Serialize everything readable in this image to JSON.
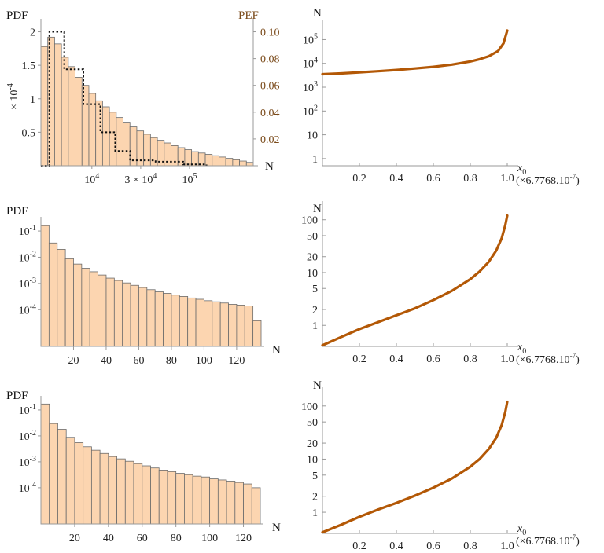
{
  "chart_data": [
    {
      "type": "bar",
      "title": "",
      "ylabel": "PDF",
      "ylabel2": "PEF",
      "xlabel": "N",
      "yscale_label": "× 10",
      "yscale_exp": "-4",
      "ylim": [
        0,
        2.1
      ],
      "y2lim": [
        0,
        0.105
      ],
      "yticks": [
        {
          "v": 0.5,
          "t": "0.5"
        },
        {
          "v": 1,
          "t": "1"
        },
        {
          "v": 1.5,
          "t": "1.5"
        },
        {
          "v": 2,
          "t": "2"
        }
      ],
      "y2ticks": [
        {
          "v": 0.02,
          "t": "0.02"
        },
        {
          "v": 0.04,
          "t": "0.04"
        },
        {
          "v": 0.06,
          "t": "0.06"
        },
        {
          "v": 0.08,
          "t": "0.08"
        },
        {
          "v": 0.1,
          "t": "0.10"
        }
      ],
      "xticks": [
        {
          "pos": 0.24,
          "base": "10",
          "exp": "4"
        },
        {
          "pos": 0.47,
          "base": "3 × 10",
          "exp": "4"
        },
        {
          "pos": 0.7,
          "base": "10",
          "exp": "5"
        }
      ],
      "values": [
        1.78,
        1.92,
        1.82,
        1.62,
        1.48,
        1.32,
        1.2,
        1.08,
        0.97,
        0.88,
        0.8,
        0.72,
        0.65,
        0.58,
        0.52,
        0.47,
        0.42,
        0.38,
        0.34,
        0.3,
        0.27,
        0.24,
        0.21,
        0.19,
        0.17,
        0.15,
        0.13,
        0.11,
        0.09,
        0.07,
        0.05
      ],
      "pef_values": [
        0.0,
        0.1,
        0.072,
        0.046,
        0.025,
        0.011,
        0.004,
        0.003,
        0.001,
        0.001
      ],
      "pef_edges": [
        0.0,
        0.04,
        0.11,
        0.2,
        0.28,
        0.35,
        0.42,
        0.54,
        0.67,
        0.78,
        0.78
      ]
    },
    {
      "type": "line",
      "ylabel": "N",
      "xlabel": "x",
      "xlabel_sub": "0",
      "xscale_label": "(×6.7768.10",
      "xscale_exp": "-7",
      "xscale_close": ")",
      "yscale": "log",
      "ylim": [
        0.5,
        300000
      ],
      "yticks": [
        {
          "v": 1,
          "base": "1",
          "exp": ""
        },
        {
          "v": 10,
          "base": "10",
          "exp": ""
        },
        {
          "v": 100,
          "base": "10",
          "exp": "2"
        },
        {
          "v": 1000,
          "base": "10",
          "exp": "3"
        },
        {
          "v": 10000,
          "base": "10",
          "exp": "4"
        },
        {
          "v": 100000,
          "base": "10",
          "exp": "5"
        }
      ],
      "xticks": [
        "0.2",
        "0.4",
        "0.6",
        "0.8",
        "1.0"
      ],
      "x": [
        0,
        0.1,
        0.2,
        0.3,
        0.4,
        0.5,
        0.6,
        0.7,
        0.8,
        0.85,
        0.9,
        0.95,
        0.98,
        1.0
      ],
      "y": [
        3500,
        3800,
        4200,
        4700,
        5300,
        6100,
        7200,
        8900,
        12000,
        15000,
        20000,
        33000,
        70000,
        240000
      ]
    },
    {
      "type": "bar",
      "ylabel": "PDF",
      "xlabel": "N",
      "yscale": "log",
      "ylim": [
        4e-06,
        0.2
      ],
      "yticks": [
        {
          "v": 0.1,
          "base": "10",
          "exp": "-1"
        },
        {
          "v": 0.01,
          "base": "10",
          "exp": "-2"
        },
        {
          "v": 0.001,
          "base": "10",
          "exp": "-3"
        },
        {
          "v": 0.0001,
          "base": "10",
          "exp": "-4"
        }
      ],
      "xlim": [
        0,
        135
      ],
      "xticks": [
        "20",
        "40",
        "60",
        "80",
        "100",
        "120"
      ],
      "bin_width": 5,
      "values": [
        0.16,
        0.035,
        0.02,
        0.0088,
        0.0055,
        0.0038,
        0.0028,
        0.0021,
        0.0016,
        0.0013,
        0.00105,
        0.00085,
        0.0007,
        0.00058,
        0.00048,
        0.00042,
        0.00036,
        0.00032,
        0.00028,
        0.00025,
        0.00022,
        0.0002,
        0.00018,
        0.00016,
        0.00015,
        0.00014,
        3.8e-05
      ]
    },
    {
      "type": "line",
      "ylabel": "N",
      "xlabel": "x",
      "xlabel_sub": "0",
      "xscale_label": "(×6.7768.10",
      "xscale_exp": "-7",
      "xscale_close": ")",
      "yscale": "log",
      "ylim": [
        0.4,
        160
      ],
      "yticks": [
        {
          "v": 1,
          "t": "1"
        },
        {
          "v": 2,
          "t": "2"
        },
        {
          "v": 5,
          "t": "5"
        },
        {
          "v": 10,
          "t": "10"
        },
        {
          "v": 20,
          "t": "20"
        },
        {
          "v": 50,
          "t": "50"
        },
        {
          "v": 100,
          "t": "100"
        }
      ],
      "xticks": [
        "0.2",
        "0.4",
        "0.6",
        "0.8",
        "1.0"
      ],
      "x": [
        0,
        0.1,
        0.2,
        0.3,
        0.4,
        0.5,
        0.6,
        0.7,
        0.8,
        0.85,
        0.9,
        0.94,
        0.97,
        0.99,
        1.0
      ],
      "y": [
        0.42,
        0.6,
        0.85,
        1.15,
        1.55,
        2.1,
        3.0,
        4.5,
        7.5,
        10.5,
        16,
        26,
        45,
        80,
        120
      ]
    },
    {
      "type": "bar",
      "ylabel": "PDF",
      "xlabel": "N",
      "yscale": "log",
      "ylim": [
        4e-06,
        0.2
      ],
      "yticks": [
        {
          "v": 0.1,
          "base": "10",
          "exp": "-1"
        },
        {
          "v": 0.01,
          "base": "10",
          "exp": "-2"
        },
        {
          "v": 0.001,
          "base": "10",
          "exp": "-3"
        },
        {
          "v": 0.0001,
          "base": "10",
          "exp": "-4"
        }
      ],
      "xlim": [
        0,
        130
      ],
      "xticks": [
        "20",
        "40",
        "60",
        "80",
        "100",
        "120"
      ],
      "bin_width": 5,
      "values": [
        0.17,
        0.03,
        0.018,
        0.0088,
        0.0055,
        0.0038,
        0.0028,
        0.0021,
        0.0016,
        0.0013,
        0.00105,
        0.00085,
        0.0007,
        0.00058,
        0.00048,
        0.00042,
        0.00036,
        0.00032,
        0.00028,
        0.00026,
        0.00022,
        0.0002,
        0.00018,
        0.00016,
        0.00014,
        0.0001
      ]
    },
    {
      "type": "line",
      "ylabel": "N",
      "xlabel": "x",
      "xlabel_sub": "0",
      "xscale_label": "(×6.7768.10",
      "xscale_exp": "-7",
      "xscale_close": ")",
      "yscale": "log",
      "ylim": [
        0.4,
        160
      ],
      "yticks": [
        {
          "v": 1,
          "t": "1"
        },
        {
          "v": 2,
          "t": "2"
        },
        {
          "v": 5,
          "t": "5"
        },
        {
          "v": 10,
          "t": "10"
        },
        {
          "v": 20,
          "t": "20"
        },
        {
          "v": 50,
          "t": "50"
        },
        {
          "v": 100,
          "t": "100"
        }
      ],
      "xticks": [
        "0.2",
        "0.4",
        "0.6",
        "0.8",
        "1.0"
      ],
      "x": [
        0,
        0.1,
        0.2,
        0.3,
        0.4,
        0.5,
        0.6,
        0.7,
        0.8,
        0.85,
        0.9,
        0.94,
        0.97,
        0.99,
        1.0
      ],
      "y": [
        0.42,
        0.58,
        0.82,
        1.12,
        1.5,
        2.05,
        2.9,
        4.3,
        7.2,
        10,
        15.5,
        25,
        44,
        78,
        120
      ]
    }
  ]
}
